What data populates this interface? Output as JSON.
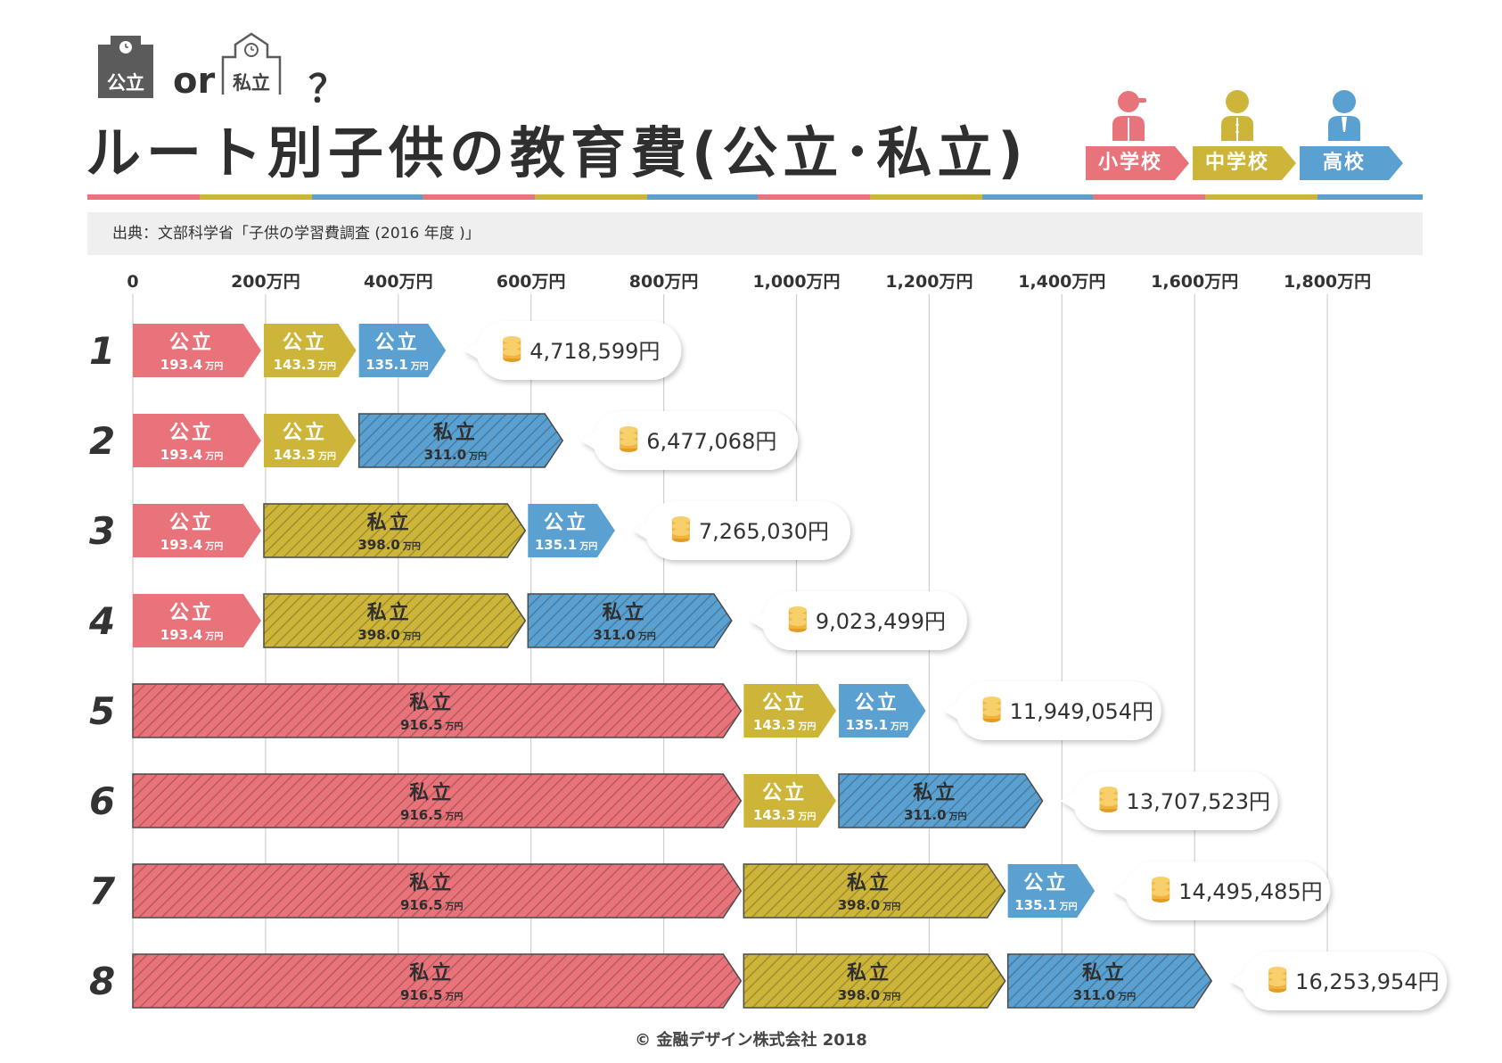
{
  "header": {
    "public_label": "公立",
    "or_label": "or",
    "private_label": "私立",
    "question_mark": "？",
    "title": "ルート別子供の教育費(公立･私立)",
    "source": "出典：文部科学省「子供の学習費調査 (2016 年度 )」",
    "legend": [
      {
        "label": "小学校",
        "color": "#e9737a",
        "icon": "elementary-student-icon"
      },
      {
        "label": "中学校",
        "color": "#cdb53a",
        "icon": "junior-high-student-icon"
      },
      {
        "label": "高校",
        "color": "#5aa0d0",
        "icon": "high-school-student-icon"
      }
    ]
  },
  "colors": {
    "elementary": "#e9737a",
    "junior_high": "#cdb53a",
    "high_school": "#5aa0d0",
    "coin": "#f0b43c",
    "grid": "#cfcfcf",
    "text": "#333333"
  },
  "chart_data": {
    "type": "bar",
    "stacked": true,
    "orientation": "horizontal",
    "x_ticks": [
      "0",
      "200万円",
      "400万円",
      "600万円",
      "800万円",
      "1,000万円",
      "1,200万円",
      "1,400万円",
      "1,600万円",
      "1,800万円"
    ],
    "x_tick_values": [
      0,
      200,
      400,
      600,
      800,
      1000,
      1200,
      1400,
      1600,
      1800
    ],
    "xlim": [
      0,
      1800
    ],
    "unit": "万円",
    "grid": true,
    "routes": [
      {
        "label": "1",
        "total": "4,718,599円",
        "segments": [
          {
            "stage": "elementary",
            "type": "公立",
            "value": 193.4,
            "value_label": "193.4",
            "unit_label": "万円"
          },
          {
            "stage": "junior_high",
            "type": "公立",
            "value": 143.3,
            "value_label": "143.3",
            "unit_label": "万円"
          },
          {
            "stage": "high_school",
            "type": "公立",
            "value": 135.1,
            "value_label": "135.1",
            "unit_label": "万円"
          }
        ]
      },
      {
        "label": "2",
        "total": "6,477,068円",
        "segments": [
          {
            "stage": "elementary",
            "type": "公立",
            "value": 193.4,
            "value_label": "193.4",
            "unit_label": "万円"
          },
          {
            "stage": "junior_high",
            "type": "公立",
            "value": 143.3,
            "value_label": "143.3",
            "unit_label": "万円"
          },
          {
            "stage": "high_school",
            "type": "私立",
            "value": 311.0,
            "value_label": "311.0",
            "unit_label": "万円"
          }
        ]
      },
      {
        "label": "3",
        "total": "7,265,030円",
        "segments": [
          {
            "stage": "elementary",
            "type": "公立",
            "value": 193.4,
            "value_label": "193.4",
            "unit_label": "万円"
          },
          {
            "stage": "junior_high",
            "type": "私立",
            "value": 398.0,
            "value_label": "398.0",
            "unit_label": "万円"
          },
          {
            "stage": "high_school",
            "type": "公立",
            "value": 135.1,
            "value_label": "135.1",
            "unit_label": "万円"
          }
        ]
      },
      {
        "label": "4",
        "total": "9,023,499円",
        "segments": [
          {
            "stage": "elementary",
            "type": "公立",
            "value": 193.4,
            "value_label": "193.4",
            "unit_label": "万円"
          },
          {
            "stage": "junior_high",
            "type": "私立",
            "value": 398.0,
            "value_label": "398.0",
            "unit_label": "万円"
          },
          {
            "stage": "high_school",
            "type": "私立",
            "value": 311.0,
            "value_label": "311.0",
            "unit_label": "万円"
          }
        ]
      },
      {
        "label": "5",
        "total": "11,949,054円",
        "segments": [
          {
            "stage": "elementary",
            "type": "私立",
            "value": 916.5,
            "value_label": "916.5",
            "unit_label": "万円"
          },
          {
            "stage": "junior_high",
            "type": "公立",
            "value": 143.3,
            "value_label": "143.3",
            "unit_label": "万円"
          },
          {
            "stage": "high_school",
            "type": "公立",
            "value": 135.1,
            "value_label": "135.1",
            "unit_label": "万円"
          }
        ]
      },
      {
        "label": "6",
        "total": "13,707,523円",
        "segments": [
          {
            "stage": "elementary",
            "type": "私立",
            "value": 916.5,
            "value_label": "916.5",
            "unit_label": "万円"
          },
          {
            "stage": "junior_high",
            "type": "公立",
            "value": 143.3,
            "value_label": "143.3",
            "unit_label": "万円"
          },
          {
            "stage": "high_school",
            "type": "私立",
            "value": 311.0,
            "value_label": "311.0",
            "unit_label": "万円"
          }
        ]
      },
      {
        "label": "7",
        "total": "14,495,485円",
        "segments": [
          {
            "stage": "elementary",
            "type": "私立",
            "value": 916.5,
            "value_label": "916.5",
            "unit_label": "万円"
          },
          {
            "stage": "junior_high",
            "type": "私立",
            "value": 398.0,
            "value_label": "398.0",
            "unit_label": "万円"
          },
          {
            "stage": "high_school",
            "type": "公立",
            "value": 135.1,
            "value_label": "135.1",
            "unit_label": "万円"
          }
        ]
      },
      {
        "label": "8",
        "total": "16,253,954円",
        "segments": [
          {
            "stage": "elementary",
            "type": "私立",
            "value": 916.5,
            "value_label": "916.5",
            "unit_label": "万円"
          },
          {
            "stage": "junior_high",
            "type": "私立",
            "value": 398.0,
            "value_label": "398.0",
            "unit_label": "万円"
          },
          {
            "stage": "high_school",
            "type": "私立",
            "value": 311.0,
            "value_label": "311.0",
            "unit_label": "万円"
          }
        ]
      }
    ]
  },
  "footer": {
    "copyright": "© 金融デザイン株式会社 2018"
  }
}
